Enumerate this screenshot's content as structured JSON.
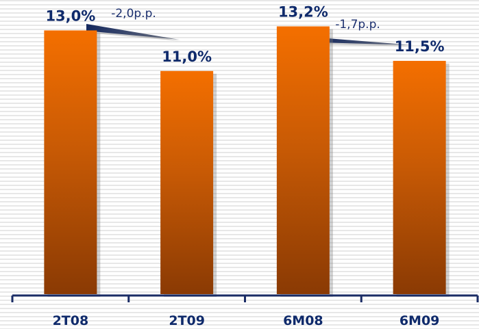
{
  "chart_data": {
    "type": "bar",
    "categories": [
      "2T08",
      "2T09",
      "6M08",
      "6M09"
    ],
    "values": [
      13.0,
      11.0,
      13.2,
      11.5
    ],
    "data_labels": [
      "13,0%",
      "11,0%",
      "13,2%",
      "11,5%"
    ],
    "unit": "%",
    "title": "",
    "xlabel": "",
    "ylabel": "",
    "ylim": [
      0,
      14.5
    ],
    "grid": "horizontal stripes",
    "legend": "none",
    "annotations": [
      {
        "text": "-2,0p.p.",
        "from_category": 0,
        "to_category": 1
      },
      {
        "text": "-1,7p.p.",
        "from_category": 2,
        "to_category": 3
      }
    ],
    "colors": {
      "bar_top": "#f46f00",
      "bar_bottom": "#8a3a04",
      "text": "#0f2a6b",
      "axis": "#1a2c66",
      "wedge": "#1c2c5e"
    }
  }
}
